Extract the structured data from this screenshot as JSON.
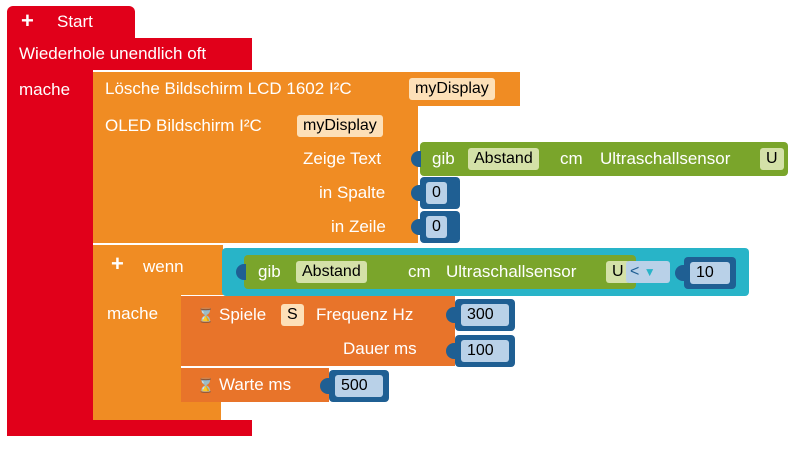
{
  "start": {
    "icon": "+",
    "label": "Start"
  },
  "loop": {
    "label": "Wiederhole unendlich oft",
    "do_label": "mache"
  },
  "clear_lcd": {
    "label": "Lösche Bildschirm  LCD 1602 I²C",
    "display": "myDisplay"
  },
  "oled": {
    "label": "OLED Bildschirm I²C",
    "display": "myDisplay",
    "show_text_label": "Zeige Text",
    "column_label": "in Spalte",
    "row_label": "in Zeile",
    "column_value": "0",
    "row_value": "0"
  },
  "sensor_top": {
    "gib": "gib",
    "field": "Abstand",
    "unit": "cm",
    "label": "Ultraschallsensor",
    "sensor": "U"
  },
  "if_block": {
    "icon": "+",
    "label": "wenn",
    "do_label": "mache",
    "operator": "<",
    "compare_value": "10"
  },
  "sensor_cond": {
    "gib": "gib",
    "field": "Abstand",
    "unit": "cm",
    "label": "Ultraschallsensor",
    "sensor": "U"
  },
  "play": {
    "icon": "⌛",
    "label": "Spiele",
    "speaker": "S",
    "freq_label": "Frequenz Hz",
    "freq_value": "300",
    "dur_label": "Dauer ms",
    "dur_value": "100"
  },
  "wait": {
    "icon": "⌛",
    "label": "Warte ms",
    "value": "500"
  },
  "colors": {
    "red": "#e1001a",
    "orange": "#f08c23",
    "dark_orange": "#e8742a",
    "green": "#7aa52b",
    "teal": "#28b4c8",
    "blue": "#1f5f93"
  }
}
